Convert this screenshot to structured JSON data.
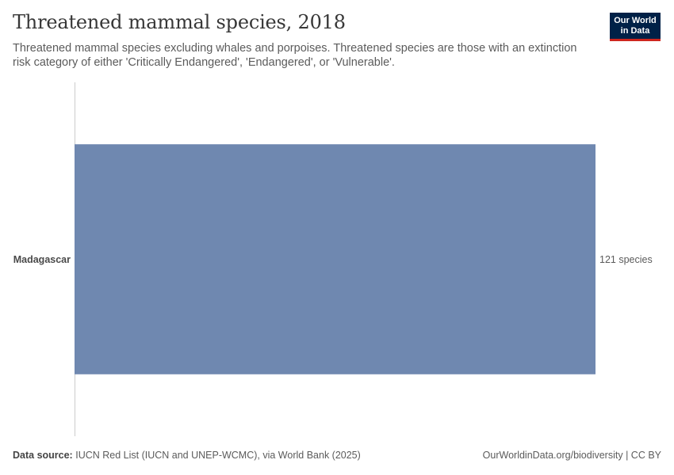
{
  "header": {
    "title": "Threatened mammal species, 2018",
    "subtitle": "Threatened mammal species excluding whales and porpoises. Threatened species are those with an extinction risk category of either 'Critically Endangered', 'Endangered', or 'Vulnerable'."
  },
  "logo": {
    "line1": "Our World",
    "line2": "in Data"
  },
  "chart_data": {
    "type": "bar",
    "orientation": "horizontal",
    "categories": [
      "Madagascar"
    ],
    "values": [
      121
    ],
    "value_labels": [
      "121 species"
    ],
    "color": "#6f88b0",
    "xlim": [
      0,
      121
    ],
    "grid": false
  },
  "footer": {
    "source_label": "Data source:",
    "source_text": "IUCN Red List (IUCN and UNEP-WCMC), via World Bank (2025)",
    "attribution": "OurWorldinData.org/biodiversity | CC BY"
  }
}
